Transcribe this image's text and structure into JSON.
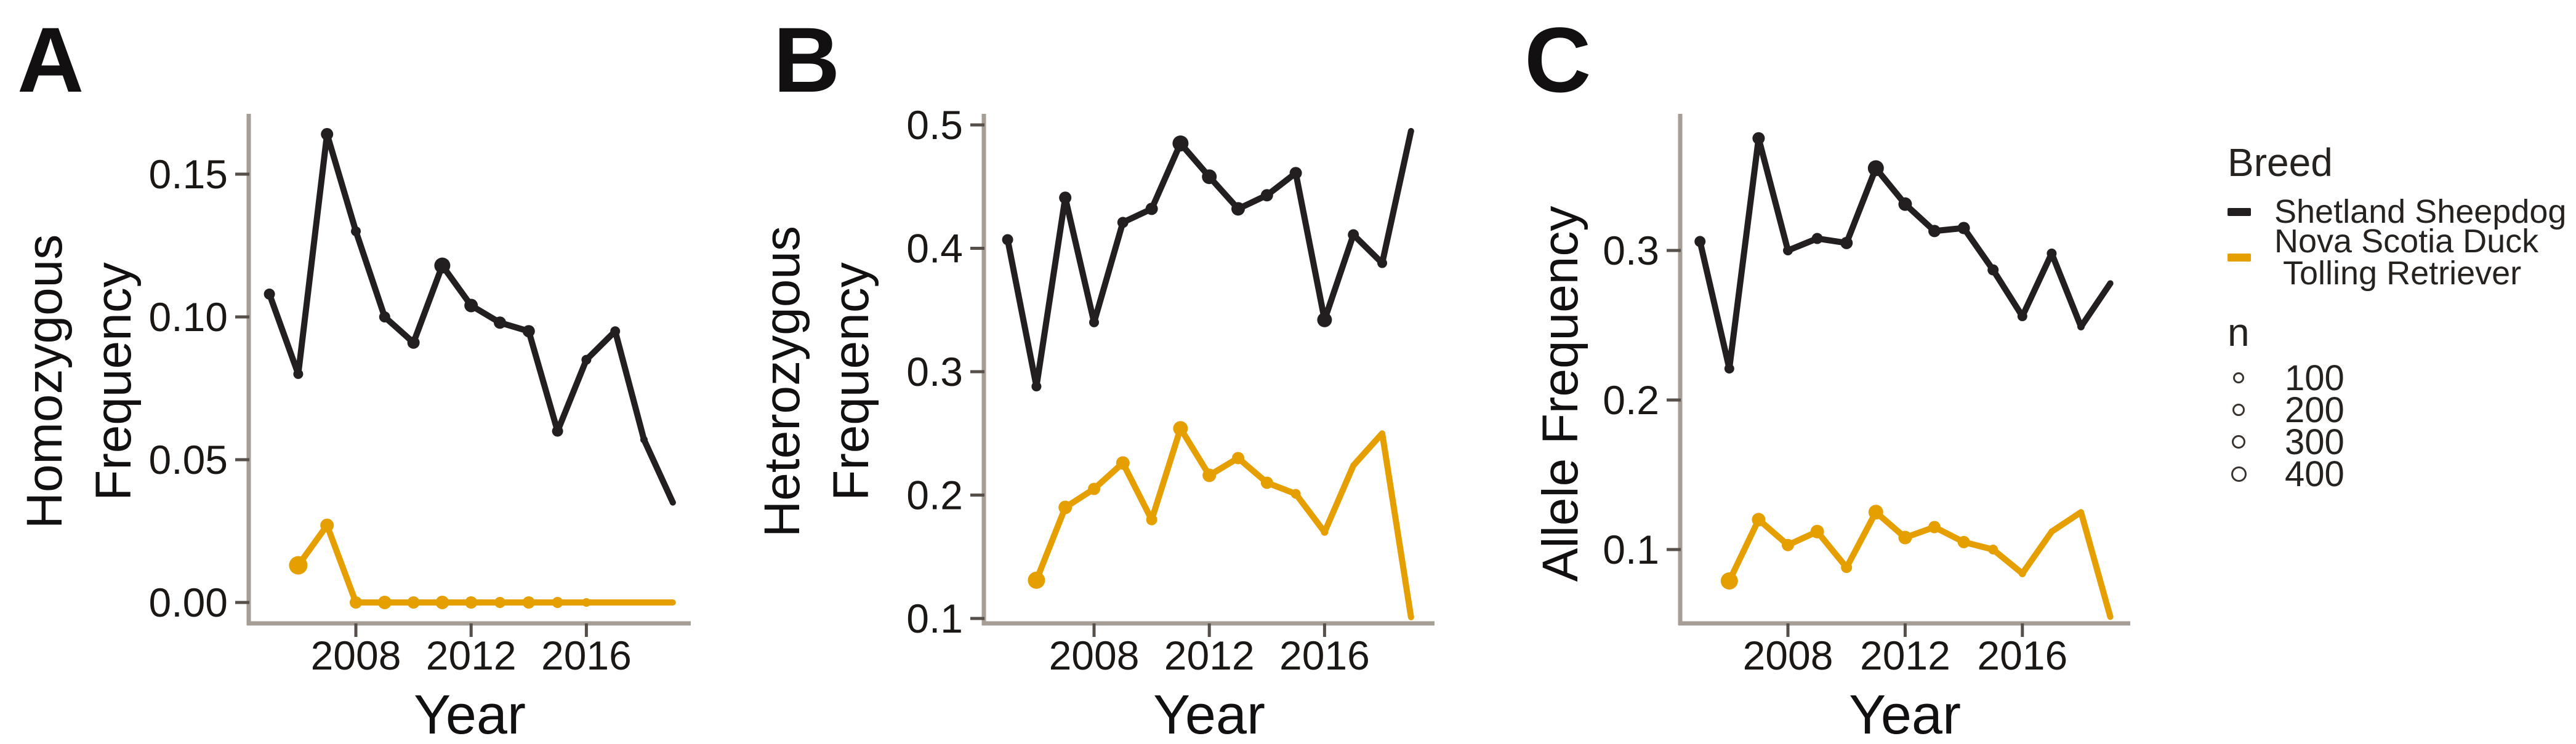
{
  "figure_type": "three-panel line chart figure",
  "colors": {
    "shetland_black": "#231f20",
    "nsdtr_orange": "#e69f00",
    "axis_line": "#a69d94",
    "tick_mark": "#57504a",
    "text": "#1a1715"
  },
  "chart_data": [
    {
      "panel_label": "A",
      "type": "line",
      "title": "",
      "xlabel": "Year",
      "ylabel": "Homozygous Frequency",
      "ylabel_lines": [
        "Homozygous",
        "Frequency"
      ],
      "xlim": [
        2004.3,
        2019.7
      ],
      "ylim": [
        0,
        0.171
      ],
      "grid": false,
      "legend_position": "figure-right",
      "xticks": [
        {
          "v": 2008,
          "label": "2008"
        },
        {
          "v": 2012,
          "label": "2012"
        },
        {
          "v": 2016,
          "label": "2016"
        }
      ],
      "yticks": [
        {
          "v": 0,
          "label": "0.00"
        },
        {
          "v": 0.05,
          "label": "0.05"
        },
        {
          "v": 0.1,
          "label": "0.10"
        },
        {
          "v": 0.15,
          "label": "0.15"
        }
      ],
      "series": [
        {
          "name": "Shetland Sheepdog",
          "color": "#231f20",
          "x": [
            2005,
            2006,
            2007,
            2008,
            2009,
            2010,
            2011,
            2012,
            2013,
            2014,
            2015,
            2016,
            2017,
            2018,
            2019
          ],
          "y": [
            0.108,
            0.08,
            0.164,
            0.13,
            0.1,
            0.091,
            0.118,
            0.104,
            0.098,
            0.095,
            0.06,
            0.085,
            0.095,
            0.057,
            0.035
          ],
          "point_r": [
            9,
            8,
            10,
            8,
            9,
            10,
            13,
            11,
            10,
            10,
            9,
            8,
            8,
            6,
            5
          ]
        },
        {
          "name": "Nova Scotia Duck Tolling Retriever",
          "color": "#e69f00",
          "x": [
            2006,
            2007,
            2008,
            2009,
            2010,
            2011,
            2012,
            2013,
            2014,
            2015,
            2016,
            2017,
            2018,
            2019
          ],
          "y": [
            0.013,
            0.027,
            0,
            0,
            0,
            0,
            0,
            0,
            0,
            0,
            0,
            0,
            0,
            0
          ],
          "point_r": [
            15,
            11,
            10,
            11,
            10,
            11,
            10,
            9,
            10,
            9,
            7,
            5,
            4,
            4
          ]
        }
      ]
    },
    {
      "panel_label": "B",
      "type": "line",
      "title": "",
      "xlabel": "Year",
      "ylabel": "Heterozygous Frequency",
      "ylabel_lines": [
        "Heterozygous",
        "Frequency"
      ],
      "xlim": [
        2004.3,
        2019.7
      ],
      "ylim": [
        0.096,
        0.509
      ],
      "grid": false,
      "legend_position": "figure-right",
      "xticks": [
        {
          "v": 2008,
          "label": "2008"
        },
        {
          "v": 2012,
          "label": "2012"
        },
        {
          "v": 2016,
          "label": "2016"
        }
      ],
      "yticks": [
        {
          "v": 0.1,
          "label": "0.1"
        },
        {
          "v": 0.2,
          "label": "0.2"
        },
        {
          "v": 0.3,
          "label": "0.3"
        },
        {
          "v": 0.4,
          "label": "0.4"
        },
        {
          "v": 0.5,
          "label": "0.5"
        }
      ],
      "series": [
        {
          "name": "Shetland Sheepdog",
          "color": "#231f20",
          "x": [
            2005,
            2006,
            2007,
            2008,
            2009,
            2010,
            2011,
            2012,
            2013,
            2014,
            2015,
            2016,
            2017,
            2018,
            2019
          ],
          "y": [
            0.407,
            0.288,
            0.441,
            0.34,
            0.421,
            0.432,
            0.485,
            0.458,
            0.432,
            0.443,
            0.461,
            0.342,
            0.411,
            0.388,
            0.495
          ],
          "point_r": [
            9,
            8,
            10,
            8,
            9,
            10,
            13,
            12,
            11,
            10,
            10,
            12,
            9,
            8,
            5
          ]
        },
        {
          "name": "Nova Scotia Duck Tolling Retriever",
          "color": "#e69f00",
          "x": [
            2006,
            2007,
            2008,
            2009,
            2010,
            2011,
            2012,
            2013,
            2014,
            2015,
            2016,
            2017,
            2018,
            2019
          ],
          "y": [
            0.131,
            0.19,
            0.205,
            0.226,
            0.18,
            0.254,
            0.216,
            0.23,
            0.21,
            0.201,
            0.17,
            0.224,
            0.25,
            0.101
          ],
          "point_r": [
            14,
            11,
            10,
            11,
            9,
            12,
            11,
            10,
            10,
            8,
            6,
            5,
            4,
            3
          ]
        }
      ]
    },
    {
      "panel_label": "C",
      "type": "line",
      "title": "",
      "xlabel": "Year",
      "ylabel": "Allele Frequency",
      "ylabel_lines": [
        "Allele Frequency"
      ],
      "xlim": [
        2004.3,
        2019.7
      ],
      "ylim": [
        0.051,
        0.391
      ],
      "grid": false,
      "legend_position": "figure-right",
      "xticks": [
        {
          "v": 2008,
          "label": "2008"
        },
        {
          "v": 2012,
          "label": "2012"
        },
        {
          "v": 2016,
          "label": "2016"
        }
      ],
      "yticks": [
        {
          "v": 0.1,
          "label": "0.1"
        },
        {
          "v": 0.2,
          "label": "0.2"
        },
        {
          "v": 0.3,
          "label": "0.3"
        }
      ],
      "series": [
        {
          "name": "Shetland Sheepdog",
          "color": "#231f20",
          "x": [
            2005,
            2006,
            2007,
            2008,
            2009,
            2010,
            2011,
            2012,
            2013,
            2014,
            2015,
            2016,
            2017,
            2018,
            2019
          ],
          "y": [
            0.306,
            0.221,
            0.375,
            0.3,
            0.308,
            0.305,
            0.355,
            0.331,
            0.313,
            0.315,
            0.287,
            0.256,
            0.298,
            0.249,
            0.278
          ],
          "point_r": [
            9,
            8,
            10,
            8,
            9,
            10,
            13,
            11,
            10,
            10,
            9,
            8,
            8,
            6,
            5
          ]
        },
        {
          "name": "Nova Scotia Duck Tolling Retriever",
          "color": "#e69f00",
          "x": [
            2006,
            2007,
            2008,
            2009,
            2010,
            2011,
            2012,
            2013,
            2014,
            2015,
            2016,
            2017,
            2018,
            2019
          ],
          "y": [
            0.079,
            0.12,
            0.103,
            0.112,
            0.088,
            0.125,
            0.108,
            0.115,
            0.105,
            0.1,
            0.084,
            0.112,
            0.125,
            0.055
          ],
          "point_r": [
            14,
            11,
            10,
            11,
            9,
            12,
            11,
            10,
            10,
            8,
            6,
            5,
            4,
            3
          ]
        }
      ]
    }
  ],
  "legend": {
    "breed_title": "Breed",
    "entries": [
      {
        "label": "Shetland Sheepdog",
        "label_lines": [
          "Shetland Sheepdog"
        ],
        "color": "#231f20"
      },
      {
        "label": "Nova Scotia Duck Tolling Retriever",
        "label_lines": [
          "Nova Scotia Duck",
          "Tolling Retriever"
        ],
        "color": "#e69f00"
      }
    ],
    "size_title": "n",
    "size_items": [
      {
        "label": "100",
        "r": 6
      },
      {
        "label": "200",
        "r": 7
      },
      {
        "label": "300",
        "r": 8
      },
      {
        "label": "400",
        "r": 9.5
      }
    ]
  }
}
